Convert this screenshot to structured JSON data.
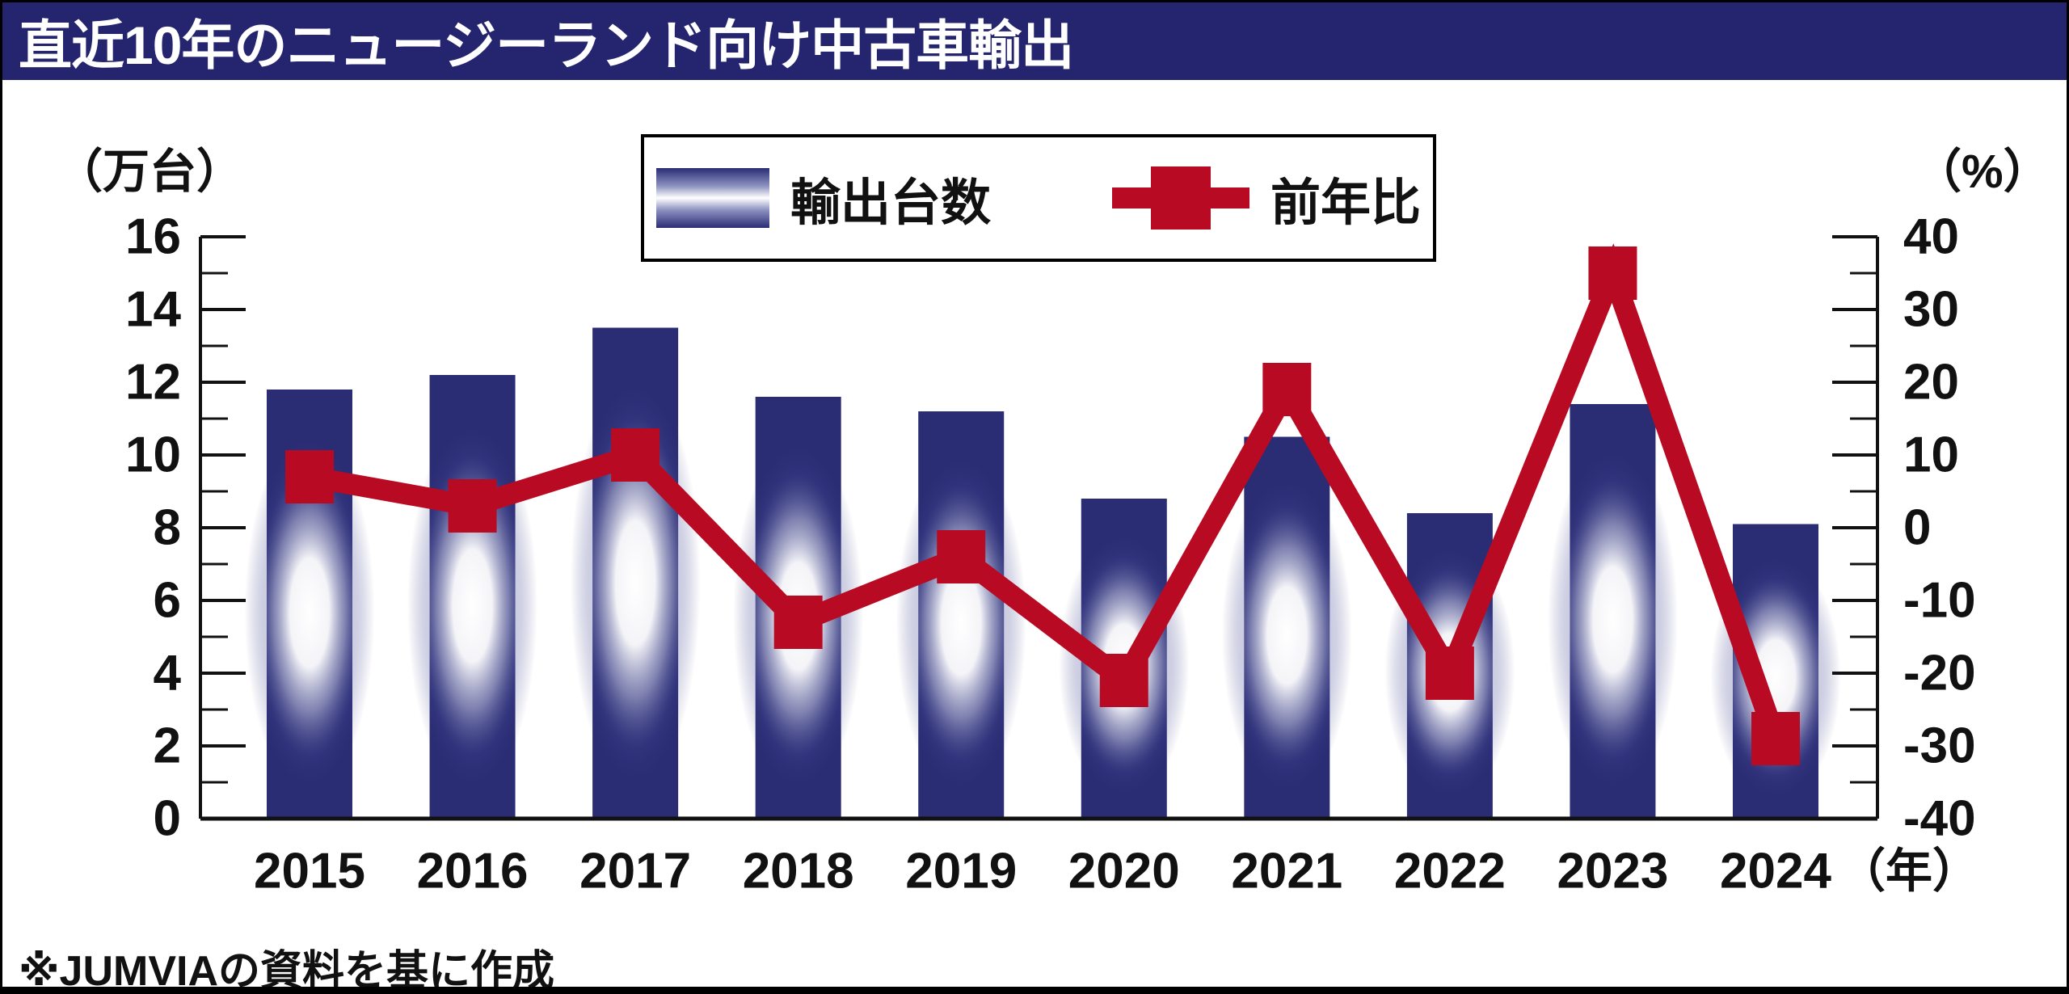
{
  "colors": {
    "navy": "#2a2c74",
    "title_bar_navy": "#24246f",
    "red": "#b80b23",
    "ink": "#111111",
    "background": "#ffffff"
  },
  "chart_data": {
    "type": "bar+line",
    "title": "直近10年のニュージーランド向け中古車輸出",
    "categories": [
      "2015",
      "2016",
      "2017",
      "2018",
      "2019",
      "2020",
      "2021",
      "2022",
      "2023",
      "2024"
    ],
    "series": [
      {
        "name": "輸出台数",
        "type": "bar",
        "axis": "left",
        "unit": "万台",
        "values": [
          11.8,
          12.2,
          13.5,
          11.6,
          11.2,
          8.8,
          10.5,
          8.4,
          11.4,
          8.1
        ]
      },
      {
        "name": "前年比",
        "type": "line",
        "axis": "right",
        "unit": "%",
        "values": [
          7,
          3,
          10,
          -13,
          -4,
          -21,
          19,
          -20,
          35,
          -29
        ]
      }
    ],
    "left_axis": {
      "label": "（万台）",
      "min": 0,
      "max": 16,
      "major_tick_step": 2,
      "minor_tick_step": 1,
      "ticks": [
        0,
        2,
        4,
        6,
        8,
        10,
        12,
        14,
        16
      ]
    },
    "right_axis": {
      "label": "（%）",
      "min": -40,
      "max": 40,
      "major_tick_step": 10,
      "minor_tick_step": 5,
      "ticks": [
        -40,
        -30,
        -20,
        -10,
        0,
        10,
        20,
        30,
        40
      ]
    },
    "x_axis": {
      "suffix": "（年）"
    },
    "legend_position": "top-center",
    "grid": false,
    "source_note": "※JUMVIAの資料を基に作成"
  }
}
